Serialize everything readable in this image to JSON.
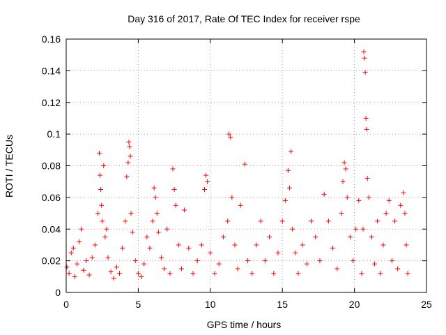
{
  "chart_data": {
    "type": "scatter",
    "title": "Day 316 of 2017, Rate Of TEC Index for receiver rspe",
    "xlabel": "GPS time / hours",
    "ylabel": "ROTI / TECUs",
    "xlim": [
      0,
      25
    ],
    "ylim": [
      0,
      0.16
    ],
    "xticks": [
      0,
      5,
      10,
      15,
      20,
      25
    ],
    "xtick_labels": [
      "0",
      "5",
      "10",
      "15",
      "20",
      "25"
    ],
    "yticks": [
      0,
      0.02,
      0.04,
      0.06,
      0.08,
      0.1,
      0.12,
      0.14,
      0.16
    ],
    "ytick_labels": [
      "0",
      "0.02",
      "0.04",
      "0.06",
      "0.08",
      "0.1",
      "0.12",
      "0.14",
      "0.16"
    ],
    "grid": true,
    "marker": "plus",
    "color": "#ff0000",
    "series": [
      {
        "name": "ROTI",
        "x": [
          0.05,
          0.2,
          0.35,
          0.5,
          0.6,
          0.75,
          0.9,
          1.05,
          1.2,
          1.4,
          1.6,
          1.8,
          2.0,
          2.2,
          2.3,
          2.35,
          2.4,
          2.45,
          2.5,
          2.6,
          2.7,
          2.8,
          2.9,
          3.1,
          3.3,
          3.5,
          3.7,
          3.9,
          4.1,
          4.2,
          4.3,
          4.35,
          4.4,
          4.45,
          4.5,
          4.6,
          4.8,
          5.0,
          5.2,
          5.4,
          5.6,
          5.8,
          6.0,
          6.1,
          6.2,
          6.3,
          6.4,
          6.6,
          6.8,
          7.0,
          7.2,
          7.4,
          7.5,
          7.6,
          7.8,
          8.0,
          8.2,
          8.5,
          8.8,
          9.1,
          9.4,
          9.6,
          9.7,
          9.8,
          10.0,
          10.3,
          10.6,
          10.9,
          11.2,
          11.3,
          11.4,
          11.5,
          11.7,
          11.9,
          12.1,
          12.4,
          12.6,
          12.9,
          13.2,
          13.5,
          13.8,
          14.1,
          14.4,
          14.7,
          15.0,
          15.2,
          15.4,
          15.5,
          15.6,
          15.7,
          15.9,
          16.1,
          16.4,
          16.7,
          17.0,
          17.3,
          17.6,
          17.9,
          18.2,
          18.5,
          18.8,
          19.1,
          19.2,
          19.3,
          19.4,
          19.5,
          19.7,
          19.9,
          20.1,
          20.3,
          20.5,
          20.6,
          20.65,
          20.7,
          20.75,
          20.8,
          20.85,
          20.9,
          21.0,
          21.2,
          21.4,
          21.6,
          21.8,
          22.0,
          22.2,
          22.4,
          22.6,
          22.8,
          23.0,
          23.2,
          23.4,
          23.5,
          23.6,
          23.7
        ],
        "y": [
          0.016,
          0.012,
          0.025,
          0.028,
          0.01,
          0.018,
          0.032,
          0.04,
          0.014,
          0.02,
          0.011,
          0.022,
          0.03,
          0.05,
          0.088,
          0.074,
          0.065,
          0.055,
          0.045,
          0.08,
          0.035,
          0.04,
          0.022,
          0.013,
          0.009,
          0.016,
          0.012,
          0.028,
          0.045,
          0.073,
          0.082,
          0.095,
          0.092,
          0.086,
          0.05,
          0.038,
          0.02,
          0.012,
          0.01,
          0.018,
          0.035,
          0.028,
          0.045,
          0.066,
          0.06,
          0.05,
          0.038,
          0.022,
          0.015,
          0.04,
          0.012,
          0.078,
          0.065,
          0.055,
          0.03,
          0.015,
          0.052,
          0.028,
          0.012,
          0.02,
          0.03,
          0.065,
          0.074,
          0.07,
          0.025,
          0.012,
          0.018,
          0.035,
          0.045,
          0.1,
          0.098,
          0.06,
          0.03,
          0.015,
          0.055,
          0.081,
          0.02,
          0.012,
          0.03,
          0.045,
          0.02,
          0.035,
          0.012,
          0.025,
          0.045,
          0.058,
          0.077,
          0.066,
          0.089,
          0.04,
          0.025,
          0.012,
          0.03,
          0.018,
          0.045,
          0.035,
          0.02,
          0.062,
          0.045,
          0.028,
          0.015,
          0.05,
          0.07,
          0.082,
          0.078,
          0.06,
          0.035,
          0.02,
          0.04,
          0.058,
          0.012,
          0.04,
          0.152,
          0.148,
          0.139,
          0.11,
          0.103,
          0.072,
          0.06,
          0.035,
          0.018,
          0.045,
          0.012,
          0.03,
          0.05,
          0.058,
          0.02,
          0.045,
          0.015,
          0.055,
          0.063,
          0.05,
          0.03,
          0.012
        ]
      }
    ]
  }
}
